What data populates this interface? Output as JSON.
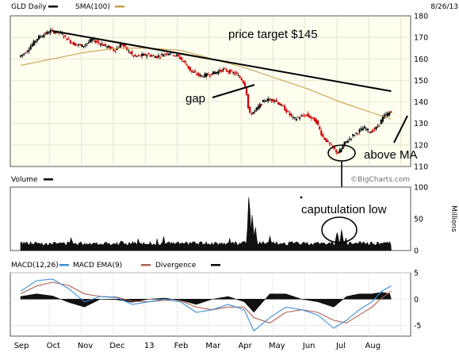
{
  "price_panel": {
    "header_label": "GLD Daily",
    "sma_label": "SMA(100)",
    "date_label": "8/26/13",
    "colors": {
      "background": "#fffff0",
      "up_candle": "#000000",
      "down_candle": "#cc0000",
      "sma_line": "#c8a04a",
      "trendline": "#000000",
      "grid": "#d8d8c8",
      "border": "#555555"
    }
  },
  "volume_panel": {
    "header_label": "Volume",
    "watermark": "©BigCharts.com",
    "axis_unit": "Millions"
  },
  "macd_panel": {
    "macd_label": "MACD(12,26)",
    "ema_label": "MACD EMA(9)",
    "divergence_label": "Divergence",
    "colors": {
      "macd": "#3c8fd8",
      "ema": "#b06050",
      "divergence": "#000000"
    }
  },
  "annotations": {
    "price_target": "price target $145",
    "gap": "gap",
    "above_ma": "above MA",
    "capitulation": "caputulation low"
  },
  "chart_data": [
    {
      "type": "candlestick",
      "title": "GLD Daily",
      "ylim": [
        110,
        180
      ],
      "yticks": [
        110,
        120,
        130,
        140,
        150,
        160,
        170,
        180
      ],
      "xticks": [
        "Sep",
        "Oct",
        "Nov",
        "Dec",
        "13",
        "Feb",
        "Mar",
        "Apr",
        "May",
        "Jun",
        "Jul",
        "Aug"
      ],
      "price_path": [
        {
          "t": 0.0,
          "p": 161
        },
        {
          "t": 0.2,
          "p": 163
        },
        {
          "t": 0.6,
          "p": 170
        },
        {
          "t": 1.0,
          "p": 173
        },
        {
          "t": 1.3,
          "p": 172
        },
        {
          "t": 1.7,
          "p": 167
        },
        {
          "t": 2.0,
          "p": 166
        },
        {
          "t": 2.3,
          "p": 169
        },
        {
          "t": 2.7,
          "p": 166
        },
        {
          "t": 3.0,
          "p": 164
        },
        {
          "t": 3.2,
          "p": 167
        },
        {
          "t": 3.6,
          "p": 161
        },
        {
          "t": 4.0,
          "p": 162
        },
        {
          "t": 4.3,
          "p": 161
        },
        {
          "t": 4.7,
          "p": 163
        },
        {
          "t": 5.0,
          "p": 161
        },
        {
          "t": 5.2,
          "p": 158
        },
        {
          "t": 5.4,
          "p": 154
        },
        {
          "t": 5.7,
          "p": 152
        },
        {
          "t": 6.0,
          "p": 153
        },
        {
          "t": 6.4,
          "p": 155
        },
        {
          "t": 6.8,
          "p": 153
        },
        {
          "t": 7.0,
          "p": 150
        },
        {
          "t": 7.1,
          "p": 147
        },
        {
          "t": 7.2,
          "p": 134
        },
        {
          "t": 7.4,
          "p": 136
        },
        {
          "t": 7.7,
          "p": 141
        },
        {
          "t": 8.0,
          "p": 141
        },
        {
          "t": 8.3,
          "p": 137
        },
        {
          "t": 8.6,
          "p": 132
        },
        {
          "t": 9.0,
          "p": 134
        },
        {
          "t": 9.3,
          "p": 131
        },
        {
          "t": 9.5,
          "p": 124
        },
        {
          "t": 9.8,
          "p": 119
        },
        {
          "t": 10.0,
          "p": 116
        },
        {
          "t": 10.2,
          "p": 121
        },
        {
          "t": 10.5,
          "p": 125
        },
        {
          "t": 10.8,
          "p": 128
        },
        {
          "t": 11.0,
          "p": 126
        },
        {
          "t": 11.2,
          "p": 128
        },
        {
          "t": 11.4,
          "p": 133
        },
        {
          "t": 11.6,
          "p": 135
        }
      ],
      "sma_100": [
        {
          "t": 0.0,
          "p": 157
        },
        {
          "t": 1.0,
          "p": 160
        },
        {
          "t": 2.0,
          "p": 163
        },
        {
          "t": 3.0,
          "p": 165
        },
        {
          "t": 4.0,
          "p": 165
        },
        {
          "t": 5.0,
          "p": 164
        },
        {
          "t": 6.0,
          "p": 160
        },
        {
          "t": 7.0,
          "p": 156
        },
        {
          "t": 8.0,
          "p": 151
        },
        {
          "t": 9.0,
          "p": 146
        },
        {
          "t": 10.0,
          "p": 140
        },
        {
          "t": 11.0,
          "p": 135
        },
        {
          "t": 11.6,
          "p": 132
        }
      ],
      "trendline": [
        {
          "t": 1.0,
          "p": 173
        },
        {
          "t": 11.6,
          "p": 145
        }
      ]
    },
    {
      "type": "bar",
      "title": "Volume",
      "ylabel": "Millions",
      "ylim": [
        0,
        100
      ],
      "yticks": [
        0,
        50,
        100
      ],
      "spikes": [
        {
          "t": 7.15,
          "v": 92
        },
        {
          "t": 7.25,
          "v": 55
        },
        {
          "t": 7.35,
          "v": 32
        },
        {
          "t": 9.9,
          "v": 25
        },
        {
          "t": 10.05,
          "v": 30
        }
      ],
      "baseline": 8
    },
    {
      "type": "line",
      "title": "MACD(12,26)",
      "ylim": [
        -7,
        5
      ],
      "yticks": [
        -5,
        0,
        5
      ],
      "series": [
        {
          "name": "MACD(12,26)",
          "values": [
            {
              "t": 0.0,
              "v": 1.5
            },
            {
              "t": 0.5,
              "v": 3.5
            },
            {
              "t": 1.0,
              "v": 3.8
            },
            {
              "t": 1.5,
              "v": 2.0
            },
            {
              "t": 2.0,
              "v": -0.5
            },
            {
              "t": 2.5,
              "v": 0.5
            },
            {
              "t": 3.0,
              "v": 0.3
            },
            {
              "t": 3.5,
              "v": -1.0
            },
            {
              "t": 4.0,
              "v": -0.5
            },
            {
              "t": 4.5,
              "v": 0.0
            },
            {
              "t": 5.0,
              "v": -0.5
            },
            {
              "t": 5.5,
              "v": -2.5
            },
            {
              "t": 6.0,
              "v": -2.0
            },
            {
              "t": 6.5,
              "v": -1.0
            },
            {
              "t": 7.0,
              "v": -2.0
            },
            {
              "t": 7.3,
              "v": -6.0
            },
            {
              "t": 7.8,
              "v": -3.5
            },
            {
              "t": 8.3,
              "v": -1.5
            },
            {
              "t": 8.8,
              "v": -2.0
            },
            {
              "t": 9.3,
              "v": -3.0
            },
            {
              "t": 9.8,
              "v": -5.5
            },
            {
              "t": 10.2,
              "v": -4.0
            },
            {
              "t": 10.6,
              "v": -2.0
            },
            {
              "t": 11.0,
              "v": -0.5
            },
            {
              "t": 11.3,
              "v": 1.5
            },
            {
              "t": 11.6,
              "v": 2.5
            }
          ]
        },
        {
          "name": "MACD EMA(9)",
          "values": [
            {
              "t": 0.0,
              "v": 1.0
            },
            {
              "t": 0.5,
              "v": 2.5
            },
            {
              "t": 1.0,
              "v": 3.2
            },
            {
              "t": 1.5,
              "v": 2.6
            },
            {
              "t": 2.0,
              "v": 1.0
            },
            {
              "t": 2.5,
              "v": 0.5
            },
            {
              "t": 3.0,
              "v": 0.4
            },
            {
              "t": 3.5,
              "v": -0.4
            },
            {
              "t": 4.0,
              "v": -0.5
            },
            {
              "t": 4.5,
              "v": -0.2
            },
            {
              "t": 5.0,
              "v": -0.3
            },
            {
              "t": 5.5,
              "v": -1.5
            },
            {
              "t": 6.0,
              "v": -2.0
            },
            {
              "t": 6.5,
              "v": -1.5
            },
            {
              "t": 7.0,
              "v": -1.5
            },
            {
              "t": 7.3,
              "v": -3.5
            },
            {
              "t": 7.8,
              "v": -4.5
            },
            {
              "t": 8.3,
              "v": -2.5
            },
            {
              "t": 8.8,
              "v": -2.0
            },
            {
              "t": 9.3,
              "v": -2.5
            },
            {
              "t": 9.8,
              "v": -4.0
            },
            {
              "t": 10.2,
              "v": -4.5
            },
            {
              "t": 10.6,
              "v": -3.0
            },
            {
              "t": 11.0,
              "v": -1.5
            },
            {
              "t": 11.3,
              "v": 0.2
            },
            {
              "t": 11.6,
              "v": 1.5
            }
          ]
        }
      ]
    }
  ]
}
